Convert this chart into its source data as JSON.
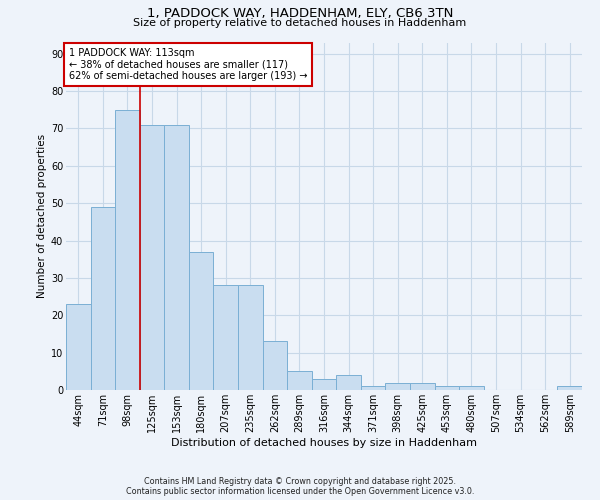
{
  "title1": "1, PADDOCK WAY, HADDENHAM, ELY, CB6 3TN",
  "title2": "Size of property relative to detached houses in Haddenham",
  "xlabel": "Distribution of detached houses by size in Haddenham",
  "ylabel": "Number of detached properties",
  "categories": [
    "44sqm",
    "71sqm",
    "98sqm",
    "125sqm",
    "153sqm",
    "180sqm",
    "207sqm",
    "235sqm",
    "262sqm",
    "289sqm",
    "316sqm",
    "344sqm",
    "371sqm",
    "398sqm",
    "425sqm",
    "453sqm",
    "480sqm",
    "507sqm",
    "534sqm",
    "562sqm",
    "589sqm"
  ],
  "values": [
    23,
    49,
    75,
    71,
    71,
    37,
    28,
    28,
    13,
    5,
    3,
    4,
    1,
    2,
    2,
    1,
    1,
    0,
    0,
    0,
    1
  ],
  "bar_color": "#c9ddf0",
  "bar_edge_color": "#7aafd4",
  "grid_color": "#c8d8e8",
  "background_color": "#eef3fa",
  "vline_x": 2.5,
  "vline_color": "#cc0000",
  "annotation_text": "1 PADDOCK WAY: 113sqm\n← 38% of detached houses are smaller (117)\n62% of semi-detached houses are larger (193) →",
  "annotation_box_color": "#ffffff",
  "annotation_box_edge": "#cc0000",
  "footer1": "Contains HM Land Registry data © Crown copyright and database right 2025.",
  "footer2": "Contains public sector information licensed under the Open Government Licence v3.0.",
  "ylim": [
    0,
    93
  ],
  "yticks": [
    0,
    10,
    20,
    30,
    40,
    50,
    60,
    70,
    80,
    90
  ],
  "title1_fontsize": 9.5,
  "title2_fontsize": 8.0,
  "xlabel_fontsize": 8.0,
  "ylabel_fontsize": 7.5,
  "tick_fontsize": 7.0,
  "annot_fontsize": 7.0,
  "footer_fontsize": 5.8
}
